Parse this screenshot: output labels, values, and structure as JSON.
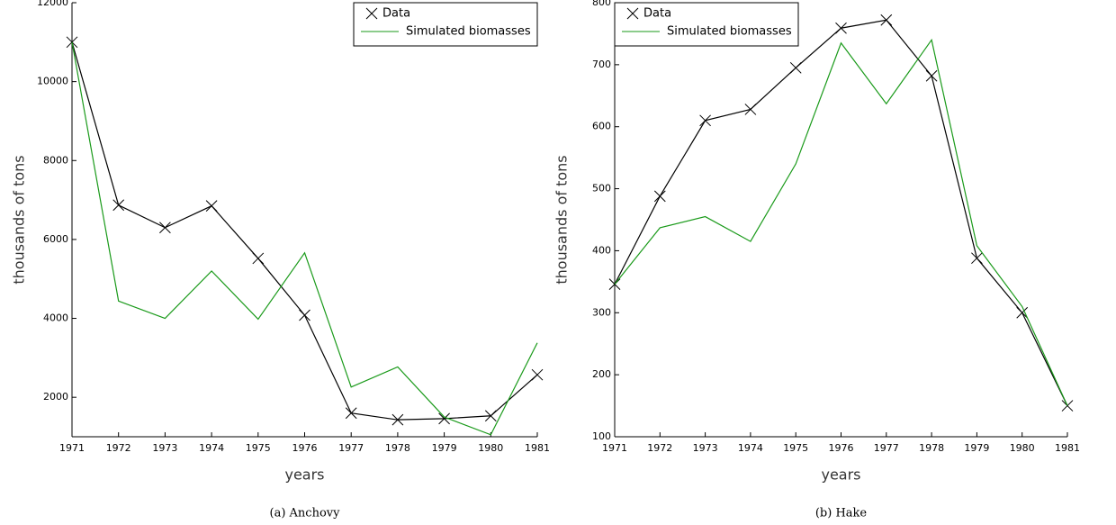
{
  "chart_data": [
    {
      "type": "line",
      "caption": "(a) Anchovy",
      "xlabel": "years",
      "ylabel": "thousands of tons",
      "legend": "upper right",
      "x": [
        1971,
        1972,
        1973,
        1974,
        1975,
        1976,
        1977,
        1978,
        1979,
        1980,
        1981
      ],
      "xlim": [
        1971,
        1981
      ],
      "xticks": [
        1971,
        1972,
        1973,
        1974,
        1975,
        1976,
        1977,
        1978,
        1979,
        1980,
        1981
      ],
      "ylim": [
        1000,
        12000
      ],
      "yticks": [
        2000,
        4000,
        6000,
        8000,
        10000,
        12000
      ],
      "series": [
        {
          "name": "Data",
          "color": "#000000",
          "marker": "x",
          "values": [
            11000,
            6870,
            6300,
            6850,
            5520,
            4080,
            1600,
            1430,
            1460,
            1530,
            2570
          ]
        },
        {
          "name": "Simulated biomasses",
          "color": "#1a9a1a",
          "values": [
            11000,
            4440,
            4000,
            5200,
            3980,
            5660,
            2260,
            2770,
            1500,
            1050,
            3380
          ]
        }
      ]
    },
    {
      "type": "line",
      "caption": "(b) Hake",
      "xlabel": "years",
      "ylabel": "thousands of tons",
      "legend": "upper left",
      "x": [
        1971,
        1972,
        1973,
        1974,
        1975,
        1976,
        1977,
        1978,
        1979,
        1980,
        1981
      ],
      "xlim": [
        1971,
        1981
      ],
      "xticks": [
        1971,
        1972,
        1973,
        1974,
        1975,
        1976,
        1977,
        1978,
        1979,
        1980,
        1981
      ],
      "ylim": [
        100,
        800
      ],
      "yticks": [
        100,
        200,
        300,
        400,
        500,
        600,
        700,
        800
      ],
      "series": [
        {
          "name": "Data",
          "color": "#000000",
          "marker": "x",
          "values": [
            346,
            488,
            610,
            628,
            695,
            759,
            772,
            682,
            388,
            300,
            150
          ]
        },
        {
          "name": "Simulated biomasses",
          "color": "#1a9a1a",
          "values": [
            346,
            437,
            455,
            415,
            540,
            735,
            637,
            740,
            408,
            310,
            150
          ]
        }
      ]
    }
  ]
}
